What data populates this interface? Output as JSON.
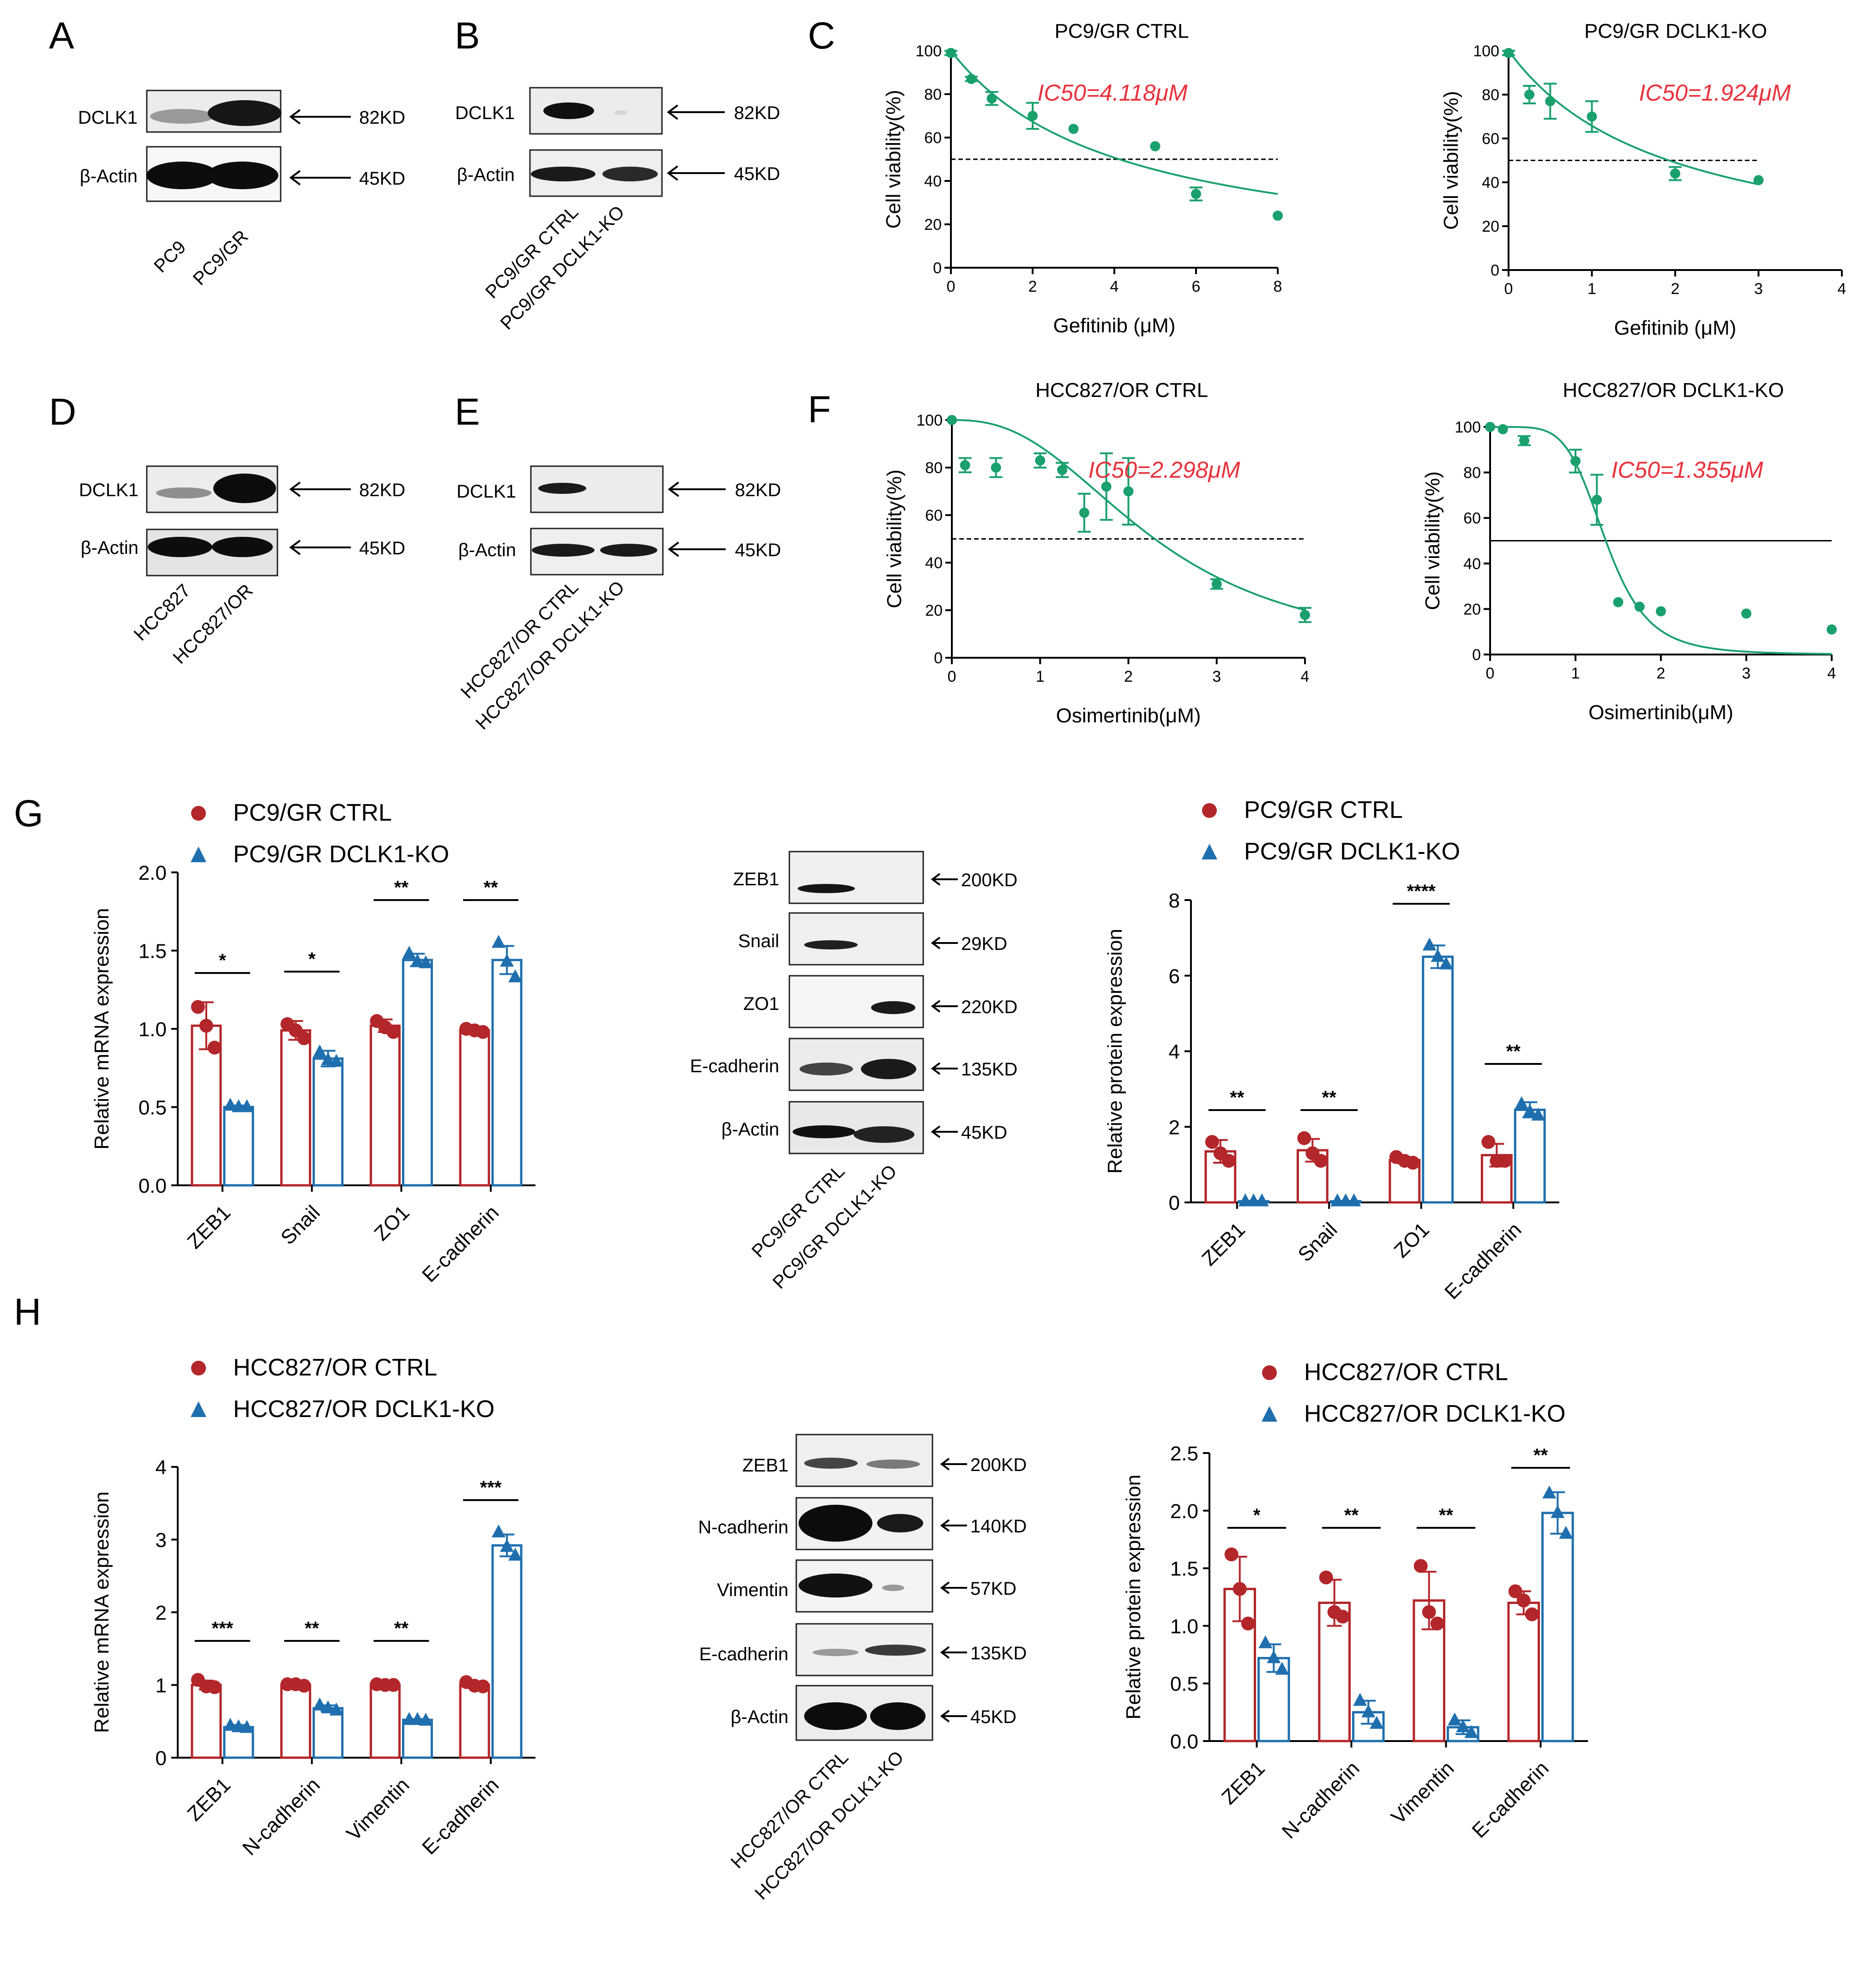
{
  "panels": {
    "A": "A",
    "B": "B",
    "C": "C",
    "D": "D",
    "E": "E",
    "F": "F",
    "G": "G",
    "H": "H"
  },
  "colors": {
    "ctrl": "#b3262a",
    "ko": "#1f6fae",
    "curve": "#19a06e",
    "ic50": "#e8323c"
  },
  "units": {
    "kd82": "82KD",
    "kd45": "45KD",
    "kd200": "200KD",
    "kd29": "29KD",
    "kd220": "220KD",
    "kd135": "135KD",
    "kd140": "140KD",
    "kd57": "57KD"
  },
  "blots": {
    "A": {
      "rows": [
        "DCLK1",
        "β-Actin"
      ],
      "lanes": [
        "PC9",
        "PC9/GR"
      ]
    },
    "B": {
      "rows": [
        "DCLK1",
        "β-Actin"
      ],
      "lanes": [
        "PC9/GR  CTRL",
        "PC9/GR DCLK1-KO"
      ]
    },
    "D": {
      "rows": [
        "DCLK1",
        "β-Actin"
      ],
      "lanes": [
        "HCC827",
        "HCC827/OR"
      ]
    },
    "E": {
      "rows": [
        "DCLK1",
        "β-Actin"
      ],
      "lanes": [
        "HCC827/OR CTRL",
        "HCC827/OR DCLK1-KO"
      ]
    },
    "G": {
      "rows": [
        "ZEB1",
        "Snail",
        "ZO1",
        "E-cadherin",
        "β-Actin"
      ],
      "lanes": [
        "PC9/GR  CTRL",
        "PC9/GR DCLK1-KO"
      ]
    },
    "H": {
      "rows": [
        "ZEB1",
        "N-cadherin",
        "Vimentin",
        "E-cadherin",
        "β-Actin"
      ],
      "lanes": [
        "HCC827/OR CTRL",
        "HCC827/OR DCLK1-KO"
      ]
    }
  },
  "chart_data": [
    {
      "id": "C1",
      "type": "scatter",
      "title": "PC9/GR CTRL",
      "xlabel": "Gefitinib (μM)",
      "ylabel": "Cell viability(%)",
      "xlim": [
        0,
        8
      ],
      "ylim": [
        0,
        100
      ],
      "xticks": [
        0,
        2,
        4,
        6,
        8
      ],
      "yticks": [
        0,
        20,
        40,
        60,
        80,
        100
      ],
      "threshold": 50,
      "ic50_label": "IC50=4.118μM",
      "x": [
        0,
        0.5,
        1,
        2,
        3,
        5,
        6,
        8
      ],
      "y": [
        99,
        87,
        78,
        70,
        64,
        56,
        34,
        24
      ],
      "err": [
        1,
        1,
        3,
        6,
        0,
        0,
        3,
        0
      ],
      "curve_ic50": 4.118,
      "curve_hill": 1.0
    },
    {
      "id": "C2",
      "type": "scatter",
      "title": "PC9/GR DCLK1-KO",
      "xlabel": "Gefitinib (μM)",
      "ylabel": "Cell viability(%)",
      "xlim": [
        0,
        4
      ],
      "ylim": [
        0,
        100
      ],
      "xticks": [
        0,
        1,
        2,
        3,
        4
      ],
      "yticks": [
        0,
        20,
        40,
        60,
        80,
        100
      ],
      "threshold": 50,
      "ic50_label": "IC50=1.924μM",
      "x": [
        0,
        0.25,
        0.5,
        1,
        2,
        3
      ],
      "y": [
        99,
        80,
        77,
        70,
        44,
        41
      ],
      "err": [
        1,
        4,
        8,
        7,
        3,
        0
      ],
      "curve_ic50": 1.924,
      "curve_hill": 1.0
    },
    {
      "id": "F1",
      "type": "scatter",
      "title": "HCC827/OR CTRL",
      "xlabel": "Osimertinib(μM)",
      "ylabel": "Cell viability(%)",
      "xlim": [
        0,
        4
      ],
      "ylim": [
        0,
        100
      ],
      "xticks": [
        0,
        1,
        2,
        3,
        4
      ],
      "yticks": [
        0,
        20,
        40,
        60,
        80,
        100
      ],
      "threshold": 50,
      "ic50_label": "IC50=2.298μM",
      "x": [
        0,
        0.15,
        0.5,
        1,
        1.25,
        1.5,
        1.75,
        2,
        3,
        4
      ],
      "y": [
        100,
        81,
        80,
        83,
        79,
        61,
        72,
        70,
        31,
        18
      ],
      "err": [
        0,
        3,
        4,
        3,
        3,
        8,
        14,
        14,
        2,
        3
      ],
      "curve_ic50": 2.298,
      "curve_hill": 2.5
    },
    {
      "id": "F2",
      "type": "scatter",
      "title": "HCC827/OR DCLK1-KO",
      "xlabel": "Osimertinib(μM)",
      "ylabel": "Cell viability(%)",
      "xlim": [
        0,
        4
      ],
      "ylim": [
        0,
        100
      ],
      "xticks": [
        0,
        1,
        2,
        3,
        4
      ],
      "yticks": [
        0,
        20,
        40,
        60,
        80,
        100
      ],
      "threshold": 50,
      "ic50_label": "IC50=1.355μM",
      "x": [
        0,
        0.15,
        0.4,
        1,
        1.25,
        1.5,
        1.75,
        2,
        3,
        4
      ],
      "y": [
        100,
        99,
        94,
        85,
        68,
        23,
        21,
        19,
        18,
        11
      ],
      "err": [
        0,
        0,
        2,
        5,
        11,
        0,
        0,
        0,
        0,
        0
      ],
      "curve_ic50": 1.355,
      "curve_hill": 5.5
    },
    {
      "id": "G1",
      "type": "bar",
      "ylabel": "Relative mRNA expression",
      "ylim": [
        0,
        2.0
      ],
      "yticks": [
        "0.0",
        "0.5",
        "1.0",
        "1.5",
        "2.0"
      ],
      "categories": [
        "ZEB1",
        "Snail",
        "ZO1",
        "E-cadherin"
      ],
      "sig": [
        "*",
        "*",
        "**",
        "**"
      ],
      "series": [
        {
          "name": "PC9/GR  CTRL",
          "values": [
            1.02,
            0.99,
            1.02,
            0.99
          ],
          "err": [
            0.15,
            0.06,
            0.04,
            0.01
          ],
          "pts": [
            [
              1.14,
              1.02,
              0.88
            ],
            [
              1.03,
              0.99,
              0.94
            ],
            [
              1.05,
              1.01,
              0.98
            ],
            [
              1.0,
              0.99,
              0.98
            ]
          ]
        },
        {
          "name": "PC9/GR DCLK1-KO",
          "values": [
            0.5,
            0.81,
            1.44,
            1.44
          ],
          "err": [
            0.01,
            0.05,
            0.04,
            0.09
          ],
          "pts": [
            [
              0.51,
              0.5,
              0.5
            ],
            [
              0.85,
              0.8,
              0.79
            ],
            [
              1.48,
              1.43,
              1.42
            ],
            [
              1.55,
              1.43,
              1.33
            ]
          ]
        }
      ]
    },
    {
      "id": "G2",
      "type": "bar",
      "ylabel": "Relative protein expression",
      "ylim": [
        0,
        8
      ],
      "yticks": [
        "0",
        "2",
        "4",
        "6",
        "8"
      ],
      "categories": [
        "ZEB1",
        "Snail",
        "ZO1",
        "E-cadherin"
      ],
      "sig": [
        "**",
        "**",
        "****",
        "**"
      ],
      "series": [
        {
          "name": "PC9/GR CTRL",
          "values": [
            1.35,
            1.38,
            1.12,
            1.25
          ],
          "err": [
            0.3,
            0.3,
            0.08,
            0.3
          ],
          "pts": [
            [
              1.6,
              1.3,
              1.1
            ],
            [
              1.7,
              1.3,
              1.1
            ],
            [
              1.2,
              1.1,
              1.05
            ],
            [
              1.6,
              1.1,
              1.1
            ]
          ]
        },
        {
          "name": "PC9/GR DCLK1-KO",
          "values": [
            0.03,
            0.03,
            6.5,
            2.45
          ],
          "err": [
            0.01,
            0.01,
            0.3,
            0.2
          ],
          "pts": [
            [
              0.03,
              0.03,
              0.03
            ],
            [
              0.03,
              0.03,
              0.03
            ],
            [
              6.8,
              6.5,
              6.3
            ],
            [
              2.6,
              2.4,
              2.3
            ]
          ]
        }
      ]
    },
    {
      "id": "H1",
      "type": "bar",
      "ylabel": "Relative mRNA expression",
      "ylim": [
        0,
        4
      ],
      "yticks": [
        "0",
        "1",
        "2",
        "3",
        "4"
      ],
      "categories": [
        "ZEB1",
        "N-cadherin",
        "Vimentin",
        "E-cadherin"
      ],
      "sig": [
        "***",
        "**",
        "**",
        "***"
      ],
      "series": [
        {
          "name": "HCC827/OR CTRL",
          "values": [
            1.0,
            1.0,
            1.0,
            1.0
          ],
          "err": [
            0.06,
            0.02,
            0.01,
            0.04
          ],
          "pts": [
            [
              1.07,
              0.98,
              0.97
            ],
            [
              1.01,
              1.01,
              0.99
            ],
            [
              1.01,
              1.0,
              1.0
            ],
            [
              1.04,
              0.99,
              0.98
            ]
          ]
        },
        {
          "name": "HCC827/OR DCLK1-KO",
          "values": [
            0.42,
            0.68,
            0.52,
            2.92
          ],
          "err": [
            0.03,
            0.04,
            0.01,
            0.15
          ],
          "pts": [
            [
              0.44,
              0.42,
              0.41
            ],
            [
              0.72,
              0.68,
              0.65
            ],
            [
              0.52,
              0.52,
              0.51
            ],
            [
              3.1,
              2.9,
              2.78
            ]
          ]
        }
      ]
    },
    {
      "id": "H2",
      "type": "bar",
      "ylabel": "Relative protein expression",
      "ylim": [
        0,
        2.5
      ],
      "yticks": [
        "0.0",
        "0.5",
        "1.0",
        "1.5",
        "2.0",
        "2.5"
      ],
      "categories": [
        "ZEB1",
        "N-cadherin",
        "Vimentin",
        "E-cadherin"
      ],
      "sig": [
        "*",
        "**",
        "**",
        "**"
      ],
      "series": [
        {
          "name": "HCC827/OR CTRL",
          "values": [
            1.32,
            1.2,
            1.22,
            1.2
          ],
          "err": [
            0.28,
            0.2,
            0.25,
            0.1
          ],
          "pts": [
            [
              1.62,
              1.32,
              1.02
            ],
            [
              1.42,
              1.12,
              1.08
            ],
            [
              1.52,
              1.12,
              1.02
            ],
            [
              1.3,
              1.22,
              1.1
            ]
          ]
        },
        {
          "name": "HCC827/OR DCLK1-KO",
          "values": [
            0.72,
            0.25,
            0.12,
            1.98
          ],
          "err": [
            0.12,
            0.1,
            0.06,
            0.18
          ],
          "pts": [
            [
              0.85,
              0.72,
              0.62
            ],
            [
              0.35,
              0.25,
              0.15
            ],
            [
              0.18,
              0.12,
              0.07
            ],
            [
              2.15,
              1.98,
              1.8
            ]
          ]
        }
      ]
    }
  ]
}
